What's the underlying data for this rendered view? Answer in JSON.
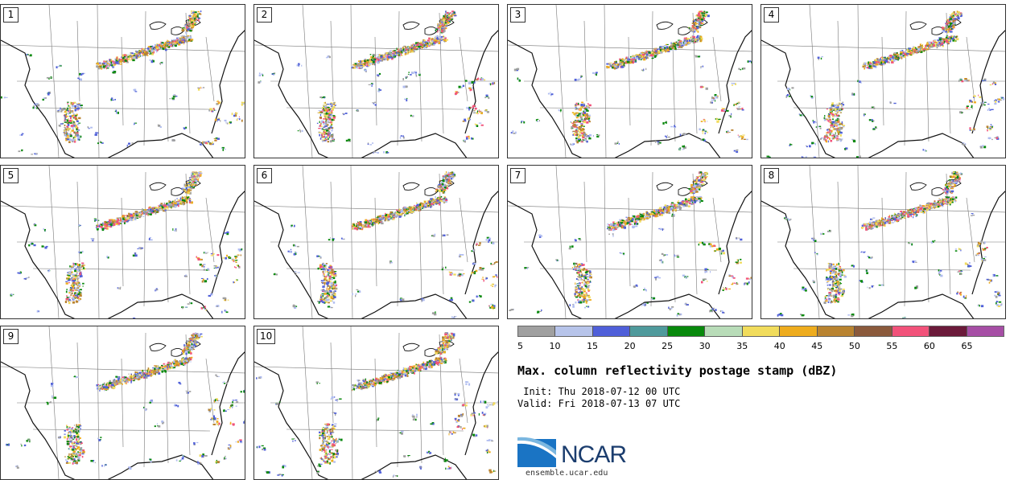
{
  "figure": {
    "title": "Max. column reflectivity postage stamp (dBZ)",
    "init": " Init: Thu 2018-07-12 00 UTC",
    "valid": "Valid: Fri 2018-07-13 07 UTC",
    "url": "ensemble.ucar.edu",
    "logo_text": "NCAR"
  },
  "members": [
    "1",
    "2",
    "3",
    "4",
    "5",
    "6",
    "7",
    "8",
    "9",
    "10"
  ],
  "colorbar": {
    "ticks": [
      "5",
      "10",
      "15",
      "20",
      "25",
      "30",
      "35",
      "40",
      "45",
      "50",
      "55",
      "60",
      "65"
    ],
    "colors": [
      "#a0a0a0",
      "#b7c4ea",
      "#4f5fd9",
      "#4f9a9c",
      "#08890c",
      "#b8dcb8",
      "#f1dc5c",
      "#eeac1e",
      "#b98330",
      "#8b5a3c",
      "#f2527a",
      "#6b1a3a",
      "#a64ea5"
    ]
  },
  "echo_colors": [
    "#5060d8",
    "#b0bdf0",
    "#a0a0a0",
    "#08890c",
    "#f1dc5c",
    "#eeac1e",
    "#b98330",
    "#f2527a"
  ]
}
